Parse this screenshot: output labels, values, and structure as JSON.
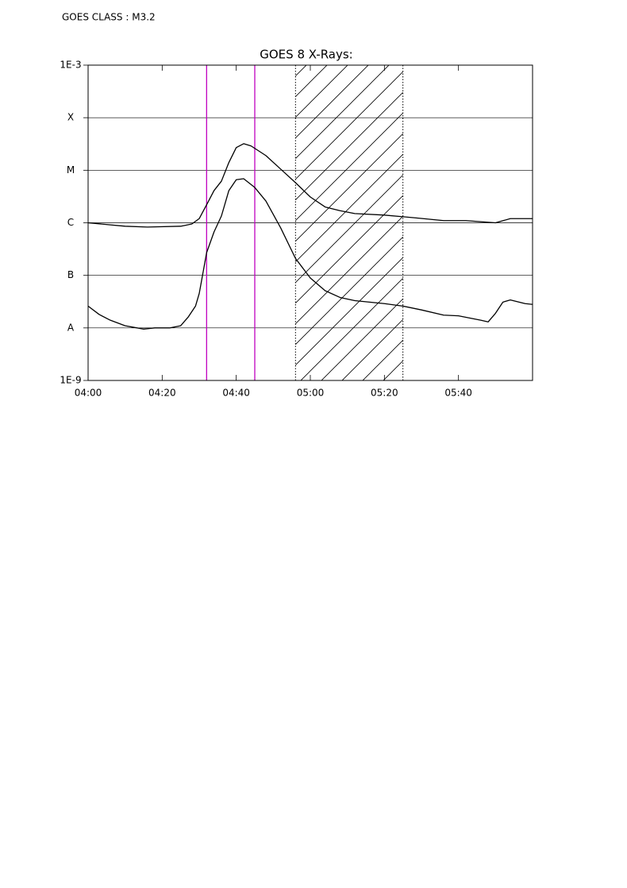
{
  "chart_data": {
    "type": "line",
    "header": "GOES CLASS : M3.2",
    "title": "GOES 8 X-Rays:",
    "log_y": true,
    "grid": true,
    "xlim": [
      "04:00",
      "06:00"
    ],
    "xticks": [
      "04:00",
      "04:20",
      "04:40",
      "05:00",
      "05:20",
      "05:40"
    ],
    "ylim": [
      1e-09,
      0.001
    ],
    "yticks": [
      {
        "value": 1e-09,
        "label": "1E-9"
      },
      {
        "value": 1e-08,
        "label": "A"
      },
      {
        "value": 1e-07,
        "label": "B"
      },
      {
        "value": 1e-06,
        "label": "C"
      },
      {
        "value": 1e-05,
        "label": "M"
      },
      {
        "value": 0.0001,
        "label": "X"
      },
      {
        "value": 0.001,
        "label": "1E-3"
      }
    ],
    "vlines": [
      "04:32",
      "04:45"
    ],
    "vline_color": "#c000c0",
    "shaded_range": [
      "04:56",
      "05:25"
    ],
    "series": [
      {
        "color": "#000000",
        "x": [
          "04:00",
          "04:10",
          "04:16",
          "04:25",
          "04:28",
          "04:30",
          "04:32",
          "04:34",
          "04:36",
          "04:38",
          "04:40",
          "04:42",
          "04:44",
          "04:48",
          "04:52",
          "04:56",
          "05:00",
          "05:04",
          "05:08",
          "05:12",
          "05:20",
          "05:28",
          "05:36",
          "05:42",
          "05:50",
          "05:54",
          "06:00"
        ],
        "values": [
          1e-06,
          8.6e-07,
          8.3e-07,
          8.6e-07,
          9.5e-07,
          1.2e-06,
          2.2e-06,
          4.1e-06,
          6.2e-06,
          1.4e-05,
          2.7e-05,
          3.2e-05,
          2.9e-05,
          1.9e-05,
          1.05e-05,
          5.8e-06,
          3.1e-06,
          2e-06,
          1.7e-06,
          1.5e-06,
          1.4e-06,
          1.25e-06,
          1.1e-06,
          1.1e-06,
          1e-06,
          1.2e-06,
          1.2e-06
        ]
      },
      {
        "color": "#000000",
        "x": [
          "04:00",
          "04:03",
          "04:06",
          "04:10",
          "04:15",
          "04:18",
          "04:22",
          "04:25",
          "04:27",
          "04:29",
          "04:30",
          "04:31",
          "04:32",
          "04:34",
          "04:36",
          "04:38",
          "04:40",
          "04:42",
          "04:45",
          "04:48",
          "04:52",
          "04:56",
          "05:00",
          "05:04",
          "05:08",
          "05:12",
          "05:20",
          "05:25",
          "05:30",
          "05:36",
          "05:40",
          "05:46",
          "05:48",
          "05:50",
          "05:52",
          "05:54",
          "05:58",
          "06:00"
        ],
        "values": [
          2.6e-08,
          1.8e-08,
          1.4e-08,
          1.1e-08,
          9.5e-09,
          1e-08,
          1e-08,
          1.1e-08,
          1.6e-08,
          2.6e-08,
          4.5e-08,
          1.1e-07,
          2.7e-07,
          6.7e-07,
          1.35e-06,
          4.1e-06,
          6.6e-06,
          6.9e-06,
          4.7e-06,
          2.6e-06,
          8e-07,
          2.1e-07,
          8.9e-08,
          5.1e-08,
          3.8e-08,
          3.3e-08,
          2.9e-08,
          2.6e-08,
          2.2e-08,
          1.75e-08,
          1.7e-08,
          1.4e-08,
          1.3e-08,
          1.9e-08,
          3.1e-08,
          3.4e-08,
          2.9e-08,
          2.8e-08
        ]
      }
    ]
  }
}
